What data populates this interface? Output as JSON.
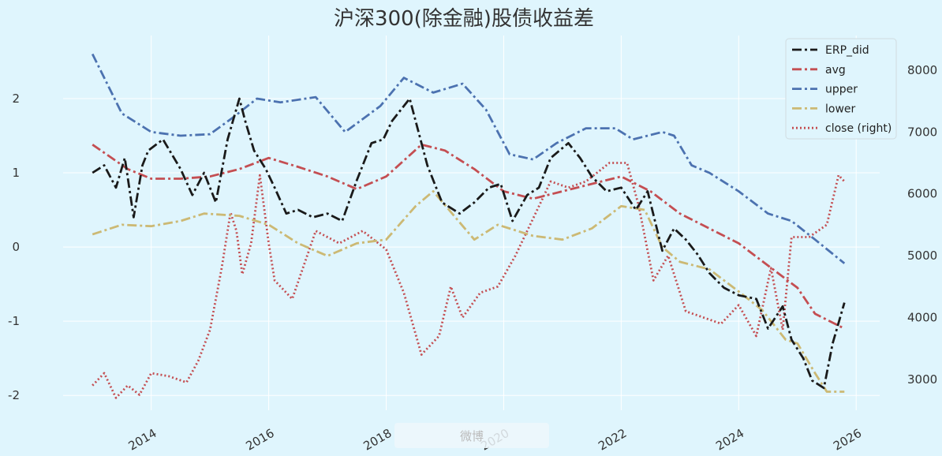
{
  "chart_data": {
    "type": "line",
    "title": "沪深300(除金融)股债收益差",
    "xlabel": "",
    "ylabel": "",
    "x_range": [
      2012.5,
      2026.4
    ],
    "x_ticks": [
      2014,
      2016,
      2018,
      2020,
      2022,
      2024,
      2026
    ],
    "x_tick_labels": [
      "2014",
      "2016",
      "2018",
      "2020",
      "2022",
      "2024",
      "2026"
    ],
    "ylim_left": [
      -2.2,
      2.85
    ],
    "y_left_ticks": [
      2,
      1,
      0,
      -1,
      -2
    ],
    "y_left_tick_labels": [
      "2",
      "1",
      "0",
      "-1",
      "-2"
    ],
    "ylim_right": [
      2500,
      8560
    ],
    "y_right_ticks": [
      8000,
      7000,
      6000,
      5000,
      4000,
      3000
    ],
    "y_right_tick_labels": [
      "8000",
      "7000",
      "6000",
      "5000",
      "4000",
      "3000"
    ],
    "grid": true,
    "legend_position": "top-right",
    "colors": {
      "background": "#dff5fd",
      "erp": "#1a1a1a",
      "avg": "#c44e52",
      "upper": "#4c72b0",
      "lower": "#ccb974",
      "close": "#c44e52"
    },
    "series": [
      {
        "name": "ERP_did",
        "axis": "left",
        "style": "dashdot",
        "x": [
          2013.0,
          2013.2,
          2013.4,
          2013.55,
          2013.7,
          2013.85,
          2013.95,
          2014.2,
          2014.5,
          2014.7,
          2014.9,
          2015.1,
          2015.3,
          2015.5,
          2015.6,
          2015.75,
          2015.95,
          2016.1,
          2016.3,
          2016.5,
          2016.75,
          2017.0,
          2017.25,
          2017.5,
          2017.75,
          2017.95,
          2018.1,
          2018.4,
          2018.7,
          2018.95,
          2019.25,
          2019.5,
          2019.75,
          2019.95,
          2020.15,
          2020.4,
          2020.6,
          2020.8,
          2020.95,
          2021.1,
          2021.3,
          2021.5,
          2021.75,
          2022.0,
          2022.25,
          2022.45,
          2022.7,
          2022.9,
          2023.1,
          2023.3,
          2023.5,
          2023.75,
          2024.0,
          2024.3,
          2024.5,
          2024.75,
          2024.9,
          2025.1,
          2025.25,
          2025.45,
          2025.6,
          2025.8
        ],
        "values": [
          1.0,
          1.1,
          0.8,
          1.2,
          0.4,
          1.1,
          1.3,
          1.45,
          1.05,
          0.7,
          1.0,
          0.6,
          1.45,
          2.0,
          1.7,
          1.3,
          1.05,
          0.8,
          0.45,
          0.5,
          0.4,
          0.45,
          0.35,
          0.9,
          1.4,
          1.45,
          1.7,
          2.0,
          1.1,
          0.6,
          0.45,
          0.6,
          0.8,
          0.85,
          0.35,
          0.7,
          0.8,
          1.2,
          1.3,
          1.4,
          1.2,
          0.95,
          0.75,
          0.8,
          0.5,
          0.75,
          -0.05,
          0.25,
          0.1,
          -0.1,
          -0.35,
          -0.55,
          -0.65,
          -0.7,
          -1.1,
          -0.8,
          -1.25,
          -1.5,
          -1.8,
          -1.9,
          -1.3,
          -0.75
        ]
      },
      {
        "name": "avg",
        "axis": "left",
        "style": "dashdot",
        "x": [
          2013.0,
          2013.6,
          2014.0,
          2014.5,
          2015.0,
          2015.5,
          2016.0,
          2016.5,
          2017.0,
          2017.5,
          2018.0,
          2018.6,
          2019.0,
          2019.5,
          2020.0,
          2020.5,
          2021.0,
          2021.5,
          2022.0,
          2022.5,
          2023.0,
          2023.5,
          2024.0,
          2024.5,
          2025.0,
          2025.3,
          2025.8
        ],
        "values": [
          1.38,
          1.05,
          0.92,
          0.92,
          0.95,
          1.05,
          1.2,
          1.08,
          0.95,
          0.78,
          0.95,
          1.38,
          1.3,
          1.05,
          0.75,
          0.65,
          0.75,
          0.85,
          0.95,
          0.75,
          0.45,
          0.25,
          0.05,
          -0.25,
          -0.55,
          -0.9,
          -1.1
        ]
      },
      {
        "name": "upper",
        "axis": "left",
        "style": "dashdot",
        "x": [
          2013.0,
          2013.5,
          2014.0,
          2014.5,
          2015.0,
          2015.4,
          2015.8,
          2016.2,
          2016.8,
          2017.3,
          2017.9,
          2018.3,
          2018.8,
          2019.3,
          2019.7,
          2020.1,
          2020.5,
          2020.9,
          2021.4,
          2021.9,
          2022.2,
          2022.7,
          2022.9,
          2023.2,
          2023.5,
          2024.0,
          2024.5,
          2024.9,
          2025.3,
          2025.8
        ],
        "values": [
          2.6,
          1.8,
          1.55,
          1.5,
          1.52,
          1.75,
          2.0,
          1.95,
          2.02,
          1.55,
          1.9,
          2.28,
          2.08,
          2.2,
          1.85,
          1.25,
          1.18,
          1.4,
          1.6,
          1.6,
          1.45,
          1.55,
          1.5,
          1.1,
          1.0,
          0.75,
          0.45,
          0.35,
          0.1,
          -0.22
        ]
      },
      {
        "name": "lower",
        "axis": "left",
        "style": "dashdot",
        "x": [
          2013.0,
          2013.5,
          2014.0,
          2014.5,
          2014.9,
          2015.5,
          2016.0,
          2016.5,
          2017.0,
          2017.5,
          2018.0,
          2018.5,
          2018.8,
          2019.5,
          2019.9,
          2020.5,
          2021.0,
          2021.5,
          2022.0,
          2022.4,
          2022.7,
          2023.0,
          2023.5,
          2024.0,
          2024.4,
          2024.8,
          2025.0,
          2025.3,
          2025.5,
          2025.8
        ],
        "values": [
          0.17,
          0.3,
          0.28,
          0.35,
          0.45,
          0.42,
          0.3,
          0.05,
          -0.12,
          0.05,
          0.1,
          0.55,
          0.75,
          0.1,
          0.3,
          0.15,
          0.1,
          0.25,
          0.55,
          0.5,
          0.0,
          -0.2,
          -0.3,
          -0.6,
          -0.85,
          -1.25,
          -1.3,
          -1.7,
          -1.95,
          -1.95
        ]
      },
      {
        "name": "close (right)",
        "axis": "right",
        "style": "dotted",
        "x": [
          2013.0,
          2013.2,
          2013.4,
          2013.6,
          2013.8,
          2014.0,
          2014.3,
          2014.6,
          2014.8,
          2015.0,
          2015.2,
          2015.35,
          2015.45,
          2015.55,
          2015.7,
          2015.85,
          2016.0,
          2016.1,
          2016.4,
          2016.8,
          2017.2,
          2017.6,
          2018.0,
          2018.3,
          2018.6,
          2018.9,
          2019.1,
          2019.3,
          2019.6,
          2019.9,
          2020.2,
          2020.5,
          2020.8,
          2021.1,
          2021.4,
          2021.8,
          2022.1,
          2022.3,
          2022.55,
          2022.8,
          2023.1,
          2023.4,
          2023.7,
          2024.0,
          2024.3,
          2024.55,
          2024.75,
          2024.9,
          2025.2,
          2025.5,
          2025.7,
          2025.8
        ],
        "values": [
          2900,
          3100,
          2700,
          2900,
          2750,
          3100,
          3050,
          2950,
          3300,
          3800,
          4800,
          5700,
          5400,
          4700,
          5200,
          6300,
          5200,
          4600,
          4300,
          5400,
          5200,
          5400,
          5100,
          4400,
          3400,
          3700,
          4500,
          4000,
          4400,
          4500,
          5000,
          5600,
          6200,
          6100,
          6200,
          6500,
          6500,
          5800,
          4600,
          5000,
          4100,
          4000,
          3900,
          4200,
          3700,
          4800,
          3800,
          5300,
          5300,
          5500,
          6300,
          6200
        ]
      }
    ]
  },
  "watermark": "微博"
}
